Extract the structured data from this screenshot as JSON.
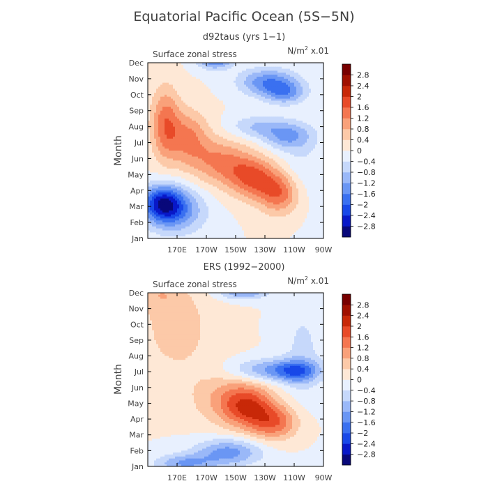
{
  "title": "Equatorial Pacific Ocean (5S−5N)",
  "chart_data": [
    {
      "type": "heatmap",
      "id": "model",
      "title": "d92taus (yrs 1−1)",
      "subtitle_left": "Surface zonal stress",
      "units": "N/m² x.01",
      "units_main": "N/m",
      "units_sup": "2",
      "units_tail": " x.01",
      "ylabel": "Month",
      "x_range_deg_east": [
        150,
        270
      ],
      "x_tick_values": [
        170,
        190,
        210,
        230,
        250,
        270
      ],
      "x_tick_labels": [
        "170E",
        "170W",
        "150W",
        "130W",
        "110W",
        "90W"
      ],
      "y_tick_labels": [
        "Jan",
        "Feb",
        "Mar",
        "Apr",
        "May",
        "Jun",
        "Jul",
        "Aug",
        "Sep",
        "Oct",
        "Nov",
        "Dec"
      ],
      "colorbar_levels": [
        "2.8",
        "2.4",
        "2",
        "1.6",
        "1.2",
        "0.8",
        "0.4",
        "0",
        "−0.4",
        "−0.8",
        "−1.2",
        "−1.6",
        "−2",
        "−2.4",
        "−2.8"
      ],
      "features": [
        {
          "lon": 160,
          "month": 2.2,
          "sx": 10,
          "sy": 0.8,
          "v": -2.2
        },
        {
          "lon": 170,
          "month": 1.7,
          "sx": 14,
          "sy": 1.0,
          "v": -1.3
        },
        {
          "lon": 162,
          "month": 7.2,
          "sx": 7,
          "sy": 1.6,
          "v": 1.4
        },
        {
          "lon": 178,
          "month": 6.3,
          "sx": 10,
          "sy": 1.2,
          "v": 1.2
        },
        {
          "lon": 200,
          "month": 4.8,
          "sx": 14,
          "sy": 1.0,
          "v": 1.2
        },
        {
          "lon": 222,
          "month": 3.8,
          "sx": 12,
          "sy": 0.9,
          "v": 1.6
        },
        {
          "lon": 240,
          "month": 2.8,
          "sx": 10,
          "sy": 0.9,
          "v": 1.5
        },
        {
          "lon": 232,
          "month": 9.8,
          "sx": 14,
          "sy": 0.6,
          "v": -1.5
        },
        {
          "lon": 244,
          "month": 9.1,
          "sx": 10,
          "sy": 0.5,
          "v": -1.2
        },
        {
          "lon": 246,
          "month": 6.4,
          "sx": 12,
          "sy": 0.6,
          "v": -1.2
        },
        {
          "lon": 225,
          "month": 7.0,
          "sx": 14,
          "sy": 0.5,
          "v": -0.8
        },
        {
          "lon": 196,
          "month": 11.2,
          "sx": 8,
          "sy": 0.4,
          "v": -1.8
        },
        {
          "lon": 255,
          "month": 4.2,
          "sx": 12,
          "sy": 1.6,
          "v": -0.4
        }
      ]
    },
    {
      "type": "heatmap",
      "id": "obs",
      "title": "ERS (1992−2000)",
      "subtitle_left": "Surface zonal stress",
      "units": "N/m² x.01",
      "units_main": "N/m",
      "units_sup": "2",
      "units_tail": " x.01",
      "ylabel": "Month",
      "x_range_deg_east": [
        150,
        270
      ],
      "x_tick_values": [
        170,
        190,
        210,
        230,
        250,
        270
      ],
      "x_tick_labels": [
        "170E",
        "170W",
        "150W",
        "130W",
        "110W",
        "90W"
      ],
      "y_tick_labels": [
        "Jan",
        "Feb",
        "Mar",
        "Apr",
        "May",
        "Jun",
        "Jul",
        "Aug",
        "Sep",
        "Oct",
        "Nov",
        "Dec"
      ],
      "colorbar_levels": [
        "2.8",
        "2.4",
        "2",
        "1.6",
        "1.2",
        "0.8",
        "0.4",
        "0",
        "−0.4",
        "−0.8",
        "−1.2",
        "−1.6",
        "−2",
        "−2.4",
        "−2.8"
      ],
      "features": [
        {
          "lon": 170,
          "month": 8.8,
          "sx": 18,
          "sy": 2.2,
          "v": 0.6
        },
        {
          "lon": 158,
          "month": 11.0,
          "sx": 10,
          "sy": 0.8,
          "v": 0.5
        },
        {
          "lon": 218,
          "month": 3.8,
          "sx": 12,
          "sy": 0.9,
          "v": 1.5
        },
        {
          "lon": 236,
          "month": 2.8,
          "sx": 12,
          "sy": 0.8,
          "v": 1.5
        },
        {
          "lon": 205,
          "month": 4.3,
          "sx": 18,
          "sy": 1.2,
          "v": 0.8
        },
        {
          "lon": 235,
          "month": 6.1,
          "sx": 20,
          "sy": 0.5,
          "v": -1.3
        },
        {
          "lon": 252,
          "month": 6.0,
          "sx": 10,
          "sy": 0.5,
          "v": -1.0
        },
        {
          "lon": 205,
          "month": 0.9,
          "sx": 16,
          "sy": 0.6,
          "v": -1.4
        },
        {
          "lon": 175,
          "month": 0.2,
          "sx": 14,
          "sy": 0.4,
          "v": -1.2
        },
        {
          "lon": 215,
          "month": 11.0,
          "sx": 12,
          "sy": 0.3,
          "v": -1.2
        },
        {
          "lon": 256,
          "month": 7.2,
          "sx": 10,
          "sy": 2.5,
          "v": -0.5
        }
      ]
    }
  ]
}
